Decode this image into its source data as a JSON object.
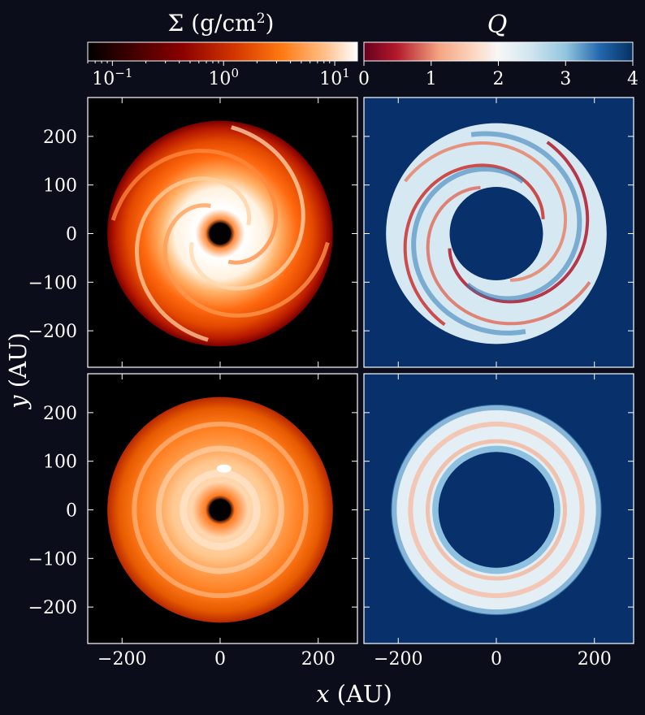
{
  "chart_data": [
    {
      "type": "heatmap",
      "panel": "top-left",
      "quantity": "surface density",
      "colormap": "gist_heat",
      "scale": "log",
      "xlim": [
        -270,
        280
      ],
      "ylim": [
        -275,
        280
      ],
      "disk": {
        "inner_radius_au": 22,
        "outer_radius_au": 230
      },
      "features": {
        "spiral_arms": 4,
        "clump": false
      }
    },
    {
      "type": "heatmap",
      "panel": "top-right",
      "quantity": "Toomre Q",
      "colormap": "RdBu",
      "scale": "linear",
      "xlim": [
        -270,
        280
      ],
      "ylim": [
        -275,
        280
      ],
      "disk": {
        "inner_radius_au": 95,
        "outer_radius_au": 225
      },
      "features": {
        "spiral_arms": 4
      }
    },
    {
      "type": "heatmap",
      "panel": "bottom-left",
      "quantity": "surface density",
      "colormap": "gist_heat",
      "scale": "log",
      "xlim": [
        -270,
        280
      ],
      "ylim": [
        -275,
        280
      ],
      "disk": {
        "inner_radius_au": 22,
        "outer_radius_au": 230
      },
      "features": {
        "rings": 3,
        "clump": true,
        "clump_position_au": [
          8,
          85
        ]
      }
    },
    {
      "type": "heatmap",
      "panel": "bottom-right",
      "quantity": "Toomre Q",
      "colormap": "RdBu",
      "scale": "linear",
      "xlim": [
        -270,
        280
      ],
      "ylim": [
        -275,
        280
      ],
      "disk": {
        "inner_radius_au": 118,
        "outer_radius_au": 213
      },
      "features": {
        "rings": 2
      }
    }
  ],
  "labels": {
    "xlabel_var": "x",
    "xlabel_unit": " (AU)",
    "ylabel_var": "y",
    "ylabel_unit": " (AU)"
  },
  "colorbars": [
    {
      "title_symbol": "Σ",
      "title_unit": " (g/cm",
      "title_sup": "2",
      "title_close": ")",
      "scale": "log",
      "range": [
        0.06,
        16
      ],
      "ticks": [
        {
          "value": 0.1,
          "base": "10",
          "exp": "−1"
        },
        {
          "value": 1,
          "base": "10",
          "exp": "0"
        },
        {
          "value": 10,
          "base": "10",
          "exp": "1"
        }
      ]
    },
    {
      "title": "Q",
      "scale": "linear",
      "range": [
        0,
        4
      ],
      "ticks": [
        "0",
        "1",
        "2",
        "3",
        "4"
      ]
    }
  ],
  "axes": {
    "x_ticks": [
      -200,
      0,
      200
    ],
    "x_tick_labels": [
      "−200",
      "0",
      "200"
    ],
    "y_ticks": [
      200,
      100,
      0,
      -100,
      -200
    ],
    "y_tick_labels": [
      "200",
      "100",
      "0",
      "−100",
      "−200"
    ]
  },
  "colors": {
    "background": "#0b0e1a",
    "q_background": "#08306b",
    "text": "#ffffff"
  }
}
